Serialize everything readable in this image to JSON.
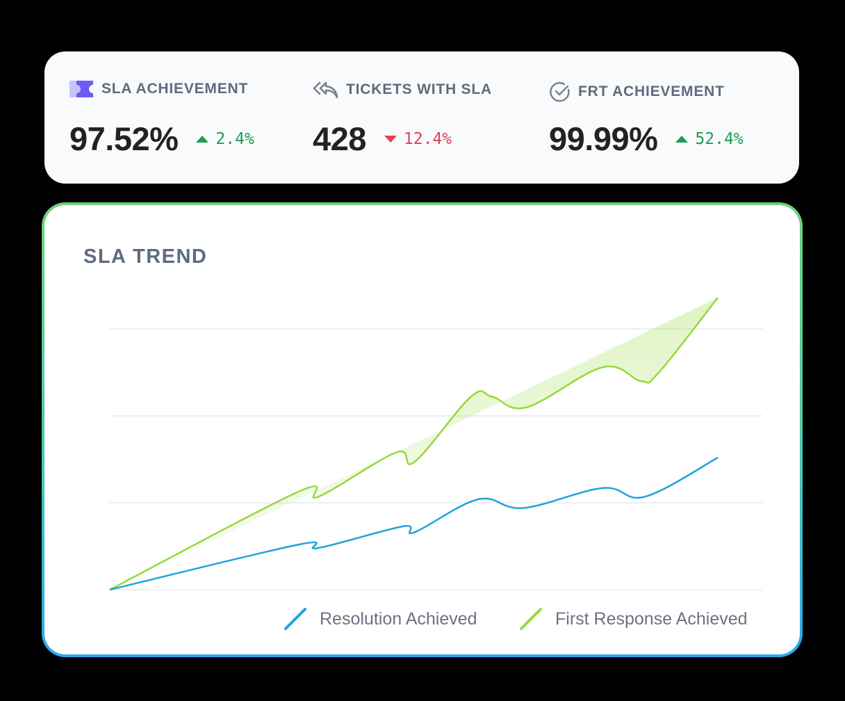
{
  "stats": [
    {
      "label": "SLA ACHIEVEMENT",
      "icon": "ticket-icon",
      "value": "97.52%",
      "change": "2.4%",
      "direction": "up"
    },
    {
      "label": "TICKETS WITH SLA",
      "icon": "reply-all-icon",
      "value": "428",
      "change": "12.4%",
      "direction": "down"
    },
    {
      "label": "FRT ACHIEVEMENT",
      "icon": "check-circle-icon",
      "value": "99.99%",
      "change": "52.4%",
      "direction": "up"
    }
  ],
  "colors": {
    "up": "#1f9a52",
    "down": "#e0405a",
    "resolution": "#1fa3dc",
    "first_response": "#96d93a",
    "ticket_icon": "#6c5cf5"
  },
  "chart_data": {
    "type": "line",
    "title": "SLA TREND",
    "xlabel": "",
    "ylabel": "",
    "grid": true,
    "legend_placement": "bottom-right",
    "xlim": [
      0,
      100
    ],
    "ylim": [
      0,
      3.4
    ],
    "gridlines": [
      0,
      1,
      2,
      3
    ],
    "series": [
      {
        "name": "Resolution Achieved",
        "color": "#1fa3dc",
        "fill": false,
        "x": [
          0,
          31.1,
          34.3,
          48.3,
          50.1,
          60.6,
          68,
          81.1,
          88,
          100
        ],
        "y": [
          0,
          0.52,
          0.48,
          0.73,
          0.66,
          1.04,
          0.94,
          1.17,
          1.07,
          1.52
        ]
      },
      {
        "name": "First Response Achieved",
        "color": "#96d93a",
        "fill": true,
        "x": [
          0,
          31.1,
          34.3,
          47.1,
          50.1,
          59.4,
          62.9,
          68.6,
          81.1,
          87.4,
          90.3,
          100
        ],
        "y": [
          0,
          1.13,
          1.07,
          1.58,
          1.47,
          2.22,
          2.22,
          2.1,
          2.56,
          2.4,
          2.5,
          3.36
        ]
      }
    ]
  }
}
